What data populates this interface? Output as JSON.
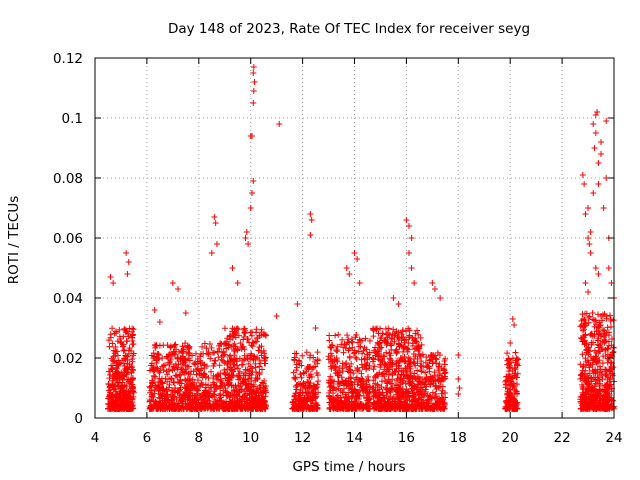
{
  "chart_data": {
    "type": "scatter",
    "title": "Day 148 of 2023, Rate Of TEC Index for receiver seyg",
    "xlabel": "GPS time / hours",
    "ylabel": "ROTI / TECUs",
    "xlim": [
      4,
      24
    ],
    "ylim": [
      0,
      0.12
    ],
    "x_ticks": [
      4,
      6,
      8,
      10,
      12,
      14,
      16,
      18,
      20,
      22,
      24
    ],
    "y_ticks": [
      0,
      0.02,
      0.04,
      0.06,
      0.08,
      0.1,
      0.12
    ],
    "x_tick_labels": [
      "4",
      "6",
      "8",
      "10",
      "12",
      "14",
      "16",
      "18",
      "20",
      "22",
      "24"
    ],
    "y_tick_labels": [
      "0",
      "0.02",
      "0.04",
      "0.06",
      "0.08",
      "0.1",
      "0.12"
    ],
    "grid": true,
    "marker": "+",
    "marker_color": "#ff0000",
    "series": [
      {
        "name": "ROTI",
        "color": "#ff0000",
        "clusters": [
          {
            "x_range": [
              4.5,
              5.5
            ],
            "y_base": [
              0.003,
              0.03
            ],
            "count": 420
          },
          {
            "x_range": [
              6.1,
              9.0
            ],
            "y_base": [
              0.003,
              0.025
            ],
            "count": 700
          },
          {
            "x_range": [
              9.0,
              10.6
            ],
            "y_base": [
              0.003,
              0.03
            ],
            "count": 520
          },
          {
            "x_range": [
              11.6,
              12.6
            ],
            "y_base": [
              0.003,
              0.022
            ],
            "count": 220
          },
          {
            "x_range": [
              13.0,
              14.6
            ],
            "y_base": [
              0.003,
              0.028
            ],
            "count": 420
          },
          {
            "x_range": [
              14.7,
              16.6
            ],
            "y_base": [
              0.003,
              0.03
            ],
            "count": 620
          },
          {
            "x_range": [
              16.6,
              17.5
            ],
            "y_base": [
              0.003,
              0.022
            ],
            "count": 200
          },
          {
            "x_range": [
              19.8,
              20.3
            ],
            "y_base": [
              0.003,
              0.022
            ],
            "count": 160
          },
          {
            "x_range": [
              22.7,
              24.0
            ],
            "y_base": [
              0.003,
              0.035
            ],
            "count": 520
          }
        ],
        "points": [
          [
            4.6,
            0.047
          ],
          [
            4.7,
            0.045
          ],
          [
            5.2,
            0.055
          ],
          [
            5.3,
            0.052
          ],
          [
            5.25,
            0.048
          ],
          [
            6.3,
            0.036
          ],
          [
            6.5,
            0.032
          ],
          [
            7.0,
            0.045
          ],
          [
            7.2,
            0.043
          ],
          [
            7.5,
            0.035
          ],
          [
            8.6,
            0.067
          ],
          [
            8.65,
            0.065
          ],
          [
            8.7,
            0.058
          ],
          [
            8.5,
            0.055
          ],
          [
            9.3,
            0.05
          ],
          [
            9.5,
            0.045
          ],
          [
            9.8,
            0.06
          ],
          [
            9.85,
            0.062
          ],
          [
            9.9,
            0.058
          ],
          [
            10.0,
            0.07
          ],
          [
            10.05,
            0.075
          ],
          [
            10.1,
            0.079
          ],
          [
            10.0,
            0.094
          ],
          [
            10.05,
            0.094
          ],
          [
            10.1,
            0.105
          ],
          [
            10.12,
            0.109
          ],
          [
            10.15,
            0.112
          ],
          [
            10.1,
            0.115
          ],
          [
            10.12,
            0.117
          ],
          [
            11.1,
            0.098
          ],
          [
            11.0,
            0.034
          ],
          [
            12.3,
            0.068
          ],
          [
            12.35,
            0.066
          ],
          [
            12.3,
            0.061
          ],
          [
            11.8,
            0.038
          ],
          [
            12.5,
            0.03
          ],
          [
            13.7,
            0.05
          ],
          [
            13.8,
            0.048
          ],
          [
            14.0,
            0.055
          ],
          [
            14.1,
            0.053
          ],
          [
            14.2,
            0.045
          ],
          [
            15.5,
            0.04
          ],
          [
            15.7,
            0.038
          ],
          [
            16.0,
            0.066
          ],
          [
            16.1,
            0.064
          ],
          [
            16.2,
            0.06
          ],
          [
            16.1,
            0.055
          ],
          [
            16.2,
            0.05
          ],
          [
            16.3,
            0.045
          ],
          [
            17.0,
            0.045
          ],
          [
            17.1,
            0.043
          ],
          [
            17.3,
            0.04
          ],
          [
            18.0,
            0.021
          ],
          [
            18.0,
            0.013
          ],
          [
            18.05,
            0.01
          ],
          [
            18.0,
            0.008
          ],
          [
            20.1,
            0.033
          ],
          [
            20.15,
            0.031
          ],
          [
            20.0,
            0.025
          ],
          [
            22.8,
            0.081
          ],
          [
            22.85,
            0.078
          ],
          [
            22.9,
            0.068
          ],
          [
            23.0,
            0.07
          ],
          [
            23.0,
            0.06
          ],
          [
            23.1,
            0.055
          ],
          [
            23.05,
            0.058
          ],
          [
            23.1,
            0.062
          ],
          [
            23.2,
            0.075
          ],
          [
            23.25,
            0.09
          ],
          [
            23.3,
            0.101
          ],
          [
            23.35,
            0.102
          ],
          [
            23.2,
            0.098
          ],
          [
            23.3,
            0.095
          ],
          [
            23.4,
            0.085
          ],
          [
            23.4,
            0.078
          ],
          [
            23.5,
            0.088
          ],
          [
            23.5,
            0.092
          ],
          [
            23.6,
            0.07
          ],
          [
            23.7,
            0.099
          ],
          [
            23.7,
            0.08
          ],
          [
            23.8,
            0.06
          ],
          [
            23.8,
            0.05
          ],
          [
            23.9,
            0.045
          ],
          [
            24.0,
            0.04
          ],
          [
            23.3,
            0.05
          ],
          [
            23.4,
            0.048
          ],
          [
            22.9,
            0.045
          ],
          [
            23.0,
            0.042
          ]
        ]
      }
    ]
  }
}
